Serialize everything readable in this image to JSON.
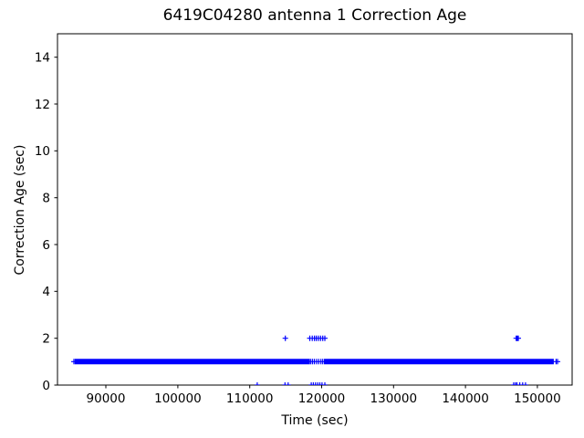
{
  "title": "6419C04280 antenna 1 Correction Age",
  "chart_data": {
    "type": "scatter",
    "title": "6419C04280 antenna 1 Correction Age",
    "xlabel": "Time (sec)",
    "ylabel": "Correction Age (sec)",
    "xlim": [
      83270,
      154830
    ],
    "ylim": [
      0,
      15
    ],
    "xticks": [
      90000,
      100000,
      110000,
      120000,
      130000,
      140000,
      150000
    ],
    "yticks": [
      0,
      2,
      4,
      6,
      8,
      10,
      12,
      14
    ],
    "grid": false,
    "legend": "none",
    "marker": "plus",
    "marker_color": "#0000ff",
    "marker_size_px": 6,
    "axis_color": "#000000",
    "background": "#ffffff",
    "series": [
      {
        "name": "correction_age",
        "description": "Correction age vs time; dense band at 1 sec with occasional dropouts to 0 sec and spikes to 2 sec",
        "band_y": 1,
        "band_segments_sec": [
          [
            85750,
            118400
          ],
          [
            120550,
            152250
          ]
        ],
        "band_sample_step_sec": 150,
        "points_age_1_sparse": [
          85550,
          118500,
          118750,
          119000,
          119300,
          119600,
          119900,
          120150,
          120400,
          152600,
          152800
        ],
        "points_age_2": [
          114950,
          118350,
          118700,
          119000,
          119250,
          119550,
          119850,
          120150,
          120450,
          147050,
          147200,
          147350
        ],
        "points_age_0": [
          111050,
          114900,
          115350,
          118550,
          118850,
          119150,
          119450,
          119750,
          120050,
          120450,
          146700,
          146950,
          147150,
          147550,
          147950,
          148350
        ]
      }
    ]
  }
}
